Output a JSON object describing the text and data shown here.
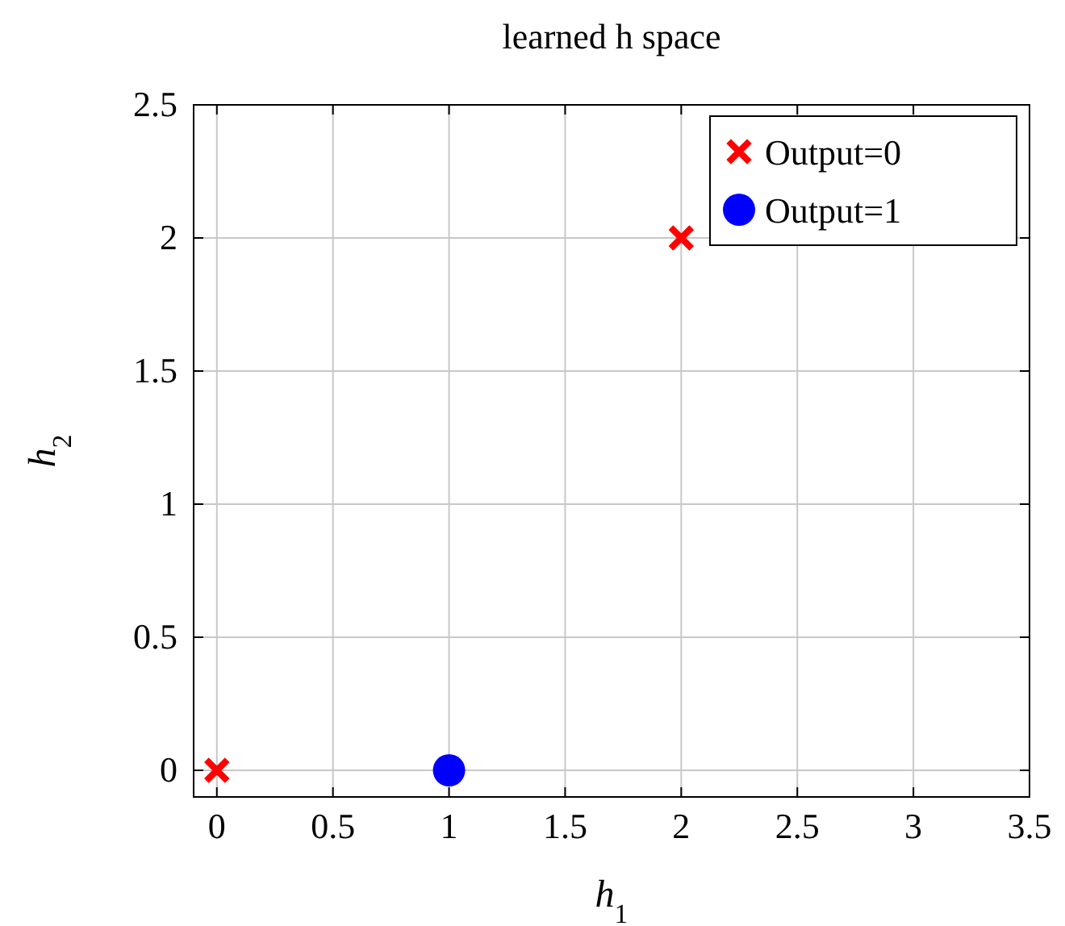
{
  "chart_data": {
    "type": "scatter",
    "title": "learned h space",
    "xlabel": "h$_{1}$",
    "ylabel": "h$_{2}$",
    "series": [
      {
        "name": "Output=0",
        "color": "#ff0000",
        "marker": "cross",
        "x": [
          0,
          2
        ],
        "values": [
          0,
          2
        ]
      },
      {
        "name": "Output=1",
        "color": "#0000ff",
        "marker": "circle",
        "x": [
          1
        ],
        "values": [
          0
        ]
      }
    ],
    "xlim": [
      -0.1,
      3.5
    ],
    "xticks": [
      0,
      0.5,
      1,
      1.5,
      2,
      2.5,
      3,
      3.5
    ],
    "ylim": [
      -0.1,
      2.5
    ],
    "yticks": [
      0,
      0.5,
      1,
      1.5,
      2,
      2.5
    ],
    "grid": true,
    "legend": "top right"
  }
}
